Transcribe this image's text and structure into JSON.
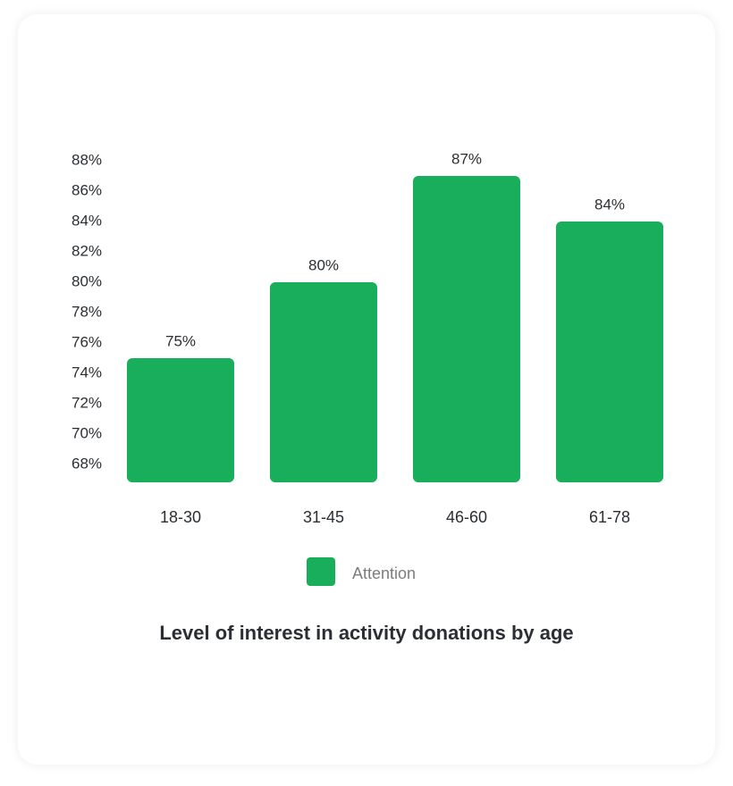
{
  "chart_data": {
    "type": "bar",
    "title": "Level of interest in activity donations by age",
    "categories": [
      "18-30",
      "31-45",
      "46-60",
      "61-78"
    ],
    "series": [
      {
        "name": "Attention",
        "values": [
          75,
          80,
          87,
          84
        ],
        "value_labels": [
          "75%",
          "80%",
          "87%",
          "84%"
        ]
      }
    ],
    "y_ticks": [
      68,
      70,
      72,
      74,
      76,
      78,
      80,
      82,
      84,
      86,
      88
    ],
    "y_tick_labels": [
      "68%",
      "70%",
      "72%",
      "74%",
      "76%",
      "78%",
      "80%",
      "82%",
      "84%",
      "86%",
      "88%"
    ],
    "ylim": [
      68,
      88
    ],
    "xlabel": "",
    "ylabel": "",
    "grid": false,
    "legend_position": "bottom-center",
    "bar_color": "#19ae5c"
  }
}
